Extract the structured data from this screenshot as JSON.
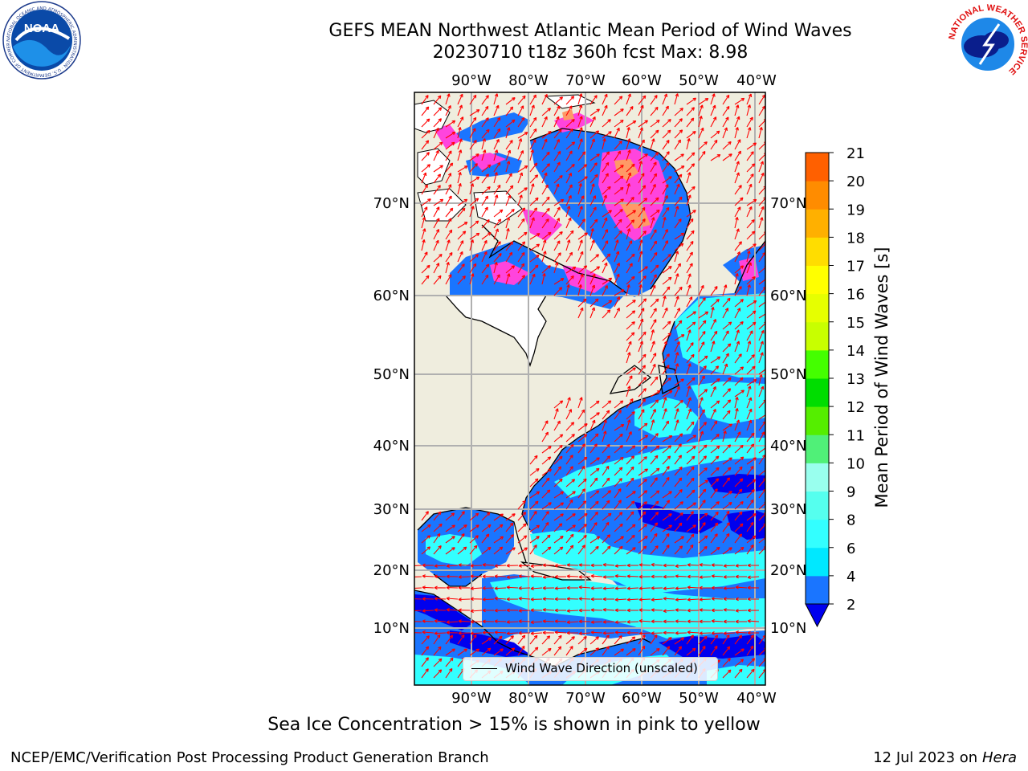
{
  "header": {
    "title": "GEFS MEAN Northwest Atlantic Mean Period of Wind Waves",
    "subtitle": "20230710 t18z 360h fcst   Max: 8.98"
  },
  "logos": {
    "left": {
      "name": "noaa-logo",
      "text": "NOAA",
      "ring_text": "NATIONAL OCEANIC AND ATMOSPHERIC ADMINISTRATION · U.S. DEPARTMENT OF COMMERCE"
    },
    "right": {
      "name": "nws-logo",
      "ring_text": "NATIONAL WEATHER SERVICE"
    }
  },
  "map": {
    "lon_labels": [
      "90°W",
      "80°W",
      "70°W",
      "60°W",
      "50°W",
      "40°W"
    ],
    "lat_labels": [
      "70°N",
      "60°N",
      "50°N",
      "40°N",
      "30°N",
      "20°N",
      "10°N"
    ],
    "legend_text": "Wind Wave Direction (unscaled)",
    "colors": {
      "land": "#efedde",
      "ocean_blue": "#1a75ff",
      "ocean_deep": "#0000ee",
      "ocean_cyan": "#33ffff",
      "ocean_cyan_light": "#55ffee",
      "ice_pink": "#ff44dd",
      "ice_orange": "#ff9966",
      "grid": "#b0b0b0",
      "arrows": "#ff0000"
    }
  },
  "colorbar": {
    "title": "Mean Period of Wind Waves [s]",
    "ticks": [
      "2",
      "4",
      "6",
      "8",
      "9",
      "10",
      "11",
      "12",
      "13",
      "14",
      "15",
      "16",
      "17",
      "18",
      "19",
      "20",
      "21"
    ],
    "colors": [
      "#1a75ff",
      "#00e8ff",
      "#33ffff",
      "#55ffee",
      "#99ffee",
      "#50f078",
      "#55ee00",
      "#00dd00",
      "#44ff00",
      "#c8ff00",
      "#e6ff00",
      "#ffff00",
      "#ffdd00",
      "#ffb000",
      "#ff8c00",
      "#ff6000",
      "#ff3300",
      "#ff0000"
    ],
    "under_color": "#0000ee"
  },
  "footer": {
    "note": "Sea Ice Concentration > 15% is shown in pink to yellow",
    "credit_left": "NCEP/EMC/Verification Post Processing Product Generation Branch",
    "credit_right_prefix": "12 Jul 2023 on ",
    "credit_right_host": "Hera"
  }
}
